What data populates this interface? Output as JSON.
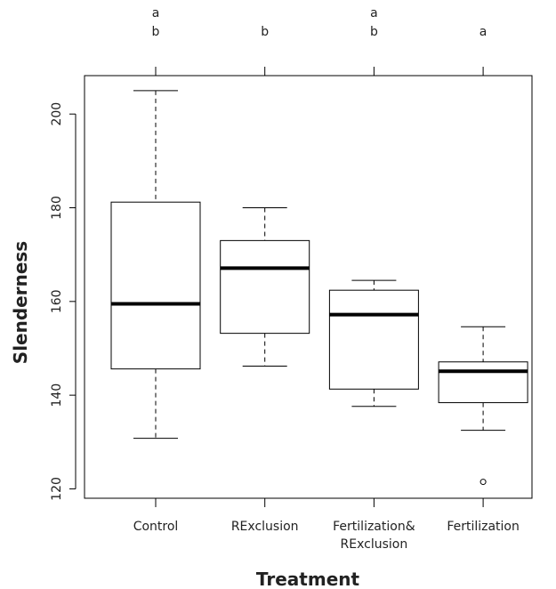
{
  "chart_data": {
    "type": "box",
    "x_label": "Treatment",
    "y_label": "Slenderness",
    "categories": [
      "Control",
      "RExclusion",
      "Fertilization&\nRExclusion",
      "Fertilization"
    ],
    "top_labels": [
      [
        "a",
        "b"
      ],
      [
        "b"
      ],
      [
        "a",
        "b"
      ],
      [
        "a"
      ]
    ],
    "boxes": [
      {
        "whisker_low": 130.8,
        "q1": 145.6,
        "median": 159.5,
        "q3": 181.2,
        "whisker_high": 205,
        "outliers": []
      },
      {
        "whisker_low": 146.2,
        "q1": 153.2,
        "median": 167.1,
        "q3": 173,
        "whisker_high": 180,
        "outliers": []
      },
      {
        "whisker_low": 137.6,
        "q1": 141.3,
        "median": 157.2,
        "q3": 162.4,
        "whisker_high": 164.5,
        "outliers": []
      },
      {
        "whisker_low": 132.5,
        "q1": 138.4,
        "median": 145.1,
        "q3": 147.1,
        "whisker_high": 154.6,
        "outliers": [
          121.5
        ]
      }
    ],
    "color": "#000000",
    "ylim": [
      118,
      208.2
    ],
    "yticks": [
      120,
      140,
      160,
      180,
      200
    ]
  }
}
